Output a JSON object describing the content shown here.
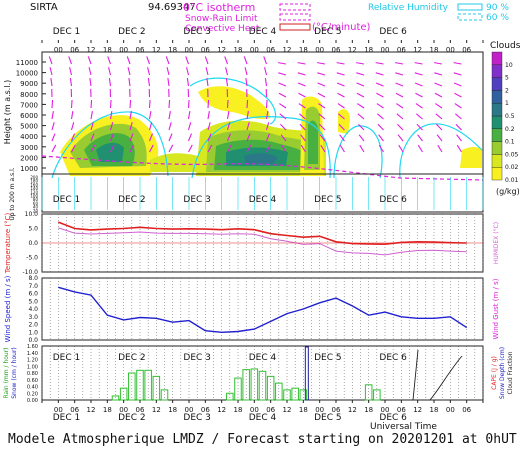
{
  "station": "SIRTA",
  "station_value": "94.69347",
  "header": {
    "isotherm_label": "0°C isotherm",
    "snow_rain_label": "Snow-Rain Limit",
    "convective_label": "Convective Heat.",
    "convective_unit": "(°C/minute)",
    "rh_label": "Relative Humidity",
    "rh_90": "90 %",
    "rh_60": "60 %"
  },
  "colors": {
    "magenta": "#e020e0",
    "cyan": "#20d8f0",
    "red": "#e02020",
    "violet": "#d060d0",
    "blue": "#2020d0",
    "green": "#30c030",
    "teal": "#20a0a0",
    "rain_label": "#20a020",
    "snow_label": "#2020c0",
    "cape_label": "#e02020",
    "cloud_frac_label": "#202020"
  },
  "days": [
    "DEC 1",
    "DEC 2",
    "DEC 3",
    "DEC 4",
    "DEC 5",
    "DEC 6"
  ],
  "hour_ticks": [
    "06",
    "12",
    "18",
    "00"
  ],
  "axes": {
    "height_label": "Height  (m a.s.l.)",
    "height_ticks": [
      "11000",
      "10000",
      "9000",
      "8000",
      "7000",
      "6000",
      "5000",
      "4000",
      "3000",
      "2000",
      "1000"
    ],
    "low_label": "Up to 200 m a.s.l.",
    "low_ticks": [
      "200",
      "180",
      "160",
      "140",
      "120",
      "100",
      "80",
      "60",
      "40",
      "20"
    ],
    "temp_label": "Temperature (°C)",
    "temp_ticks": [
      "10.0",
      "5.0",
      "0.0",
      "-5.0",
      "-10.0"
    ],
    "humidex_label": "HUMIDEX (°C)",
    "wind_label": "Wind Speed (m / s)",
    "wind_ticks": [
      "8.0",
      "7.0",
      "6.0",
      "5.0",
      "4.0",
      "3.0",
      "2.0",
      "1.0",
      "0.0"
    ],
    "gust_label": "Wind Gust (m / s)",
    "rain_label": "Rain (mm / hour)",
    "snow_label": "Snow (cm / hour)",
    "precip_ticks": [
      "1.60",
      "1.40",
      "1.20",
      "1.00",
      "0.80",
      "0.60",
      "0.40",
      "0.20",
      "0.00"
    ],
    "cape_label": "CAPE (J / g)",
    "snow_depth_label": "Snow Depth (cm)",
    "cloud_frac_label": "Cloud Fraction",
    "x_label": "Universal Time"
  },
  "clouds_legend": {
    "title": "Clouds",
    "unit": "(g/kg)",
    "levels": [
      "0.01",
      "0.02",
      "0.05",
      "0.1",
      "0.2",
      "0.5",
      "1",
      "2",
      "5",
      "10"
    ],
    "colors": [
      "#f8f020",
      "#d8e820",
      "#98cc30",
      "#48b040",
      "#209070",
      "#2a7888",
      "#3060a0",
      "#5040c0",
      "#8030c8",
      "#c020c8"
    ]
  },
  "chart_data": [
    {
      "type": "line",
      "panel": "temperature",
      "x": [
        0,
        6,
        12,
        18,
        24,
        30,
        36,
        42,
        48,
        54,
        60,
        66,
        72,
        78,
        84,
        90,
        96,
        102,
        108,
        114,
        120,
        126,
        132,
        138,
        144,
        150
      ],
      "series": [
        {
          "name": "Temperature",
          "values": [
            7.2,
            5.0,
            4.5,
            4.8,
            5.0,
            5.4,
            5.0,
            4.8,
            4.9,
            4.8,
            4.6,
            4.9,
            4.6,
            3.2,
            2.6,
            2.0,
            2.3,
            0.4,
            -0.2,
            -0.3,
            -0.4,
            0.2,
            0.4,
            0.3,
            0.1,
            0.0
          ]
        },
        {
          "name": "Humidex",
          "values": [
            5.2,
            3.4,
            3.1,
            3.3,
            3.5,
            3.8,
            3.4,
            3.3,
            3.3,
            3.2,
            3.0,
            3.2,
            3.0,
            1.5,
            0.6,
            -0.5,
            -0.2,
            -2.8,
            -3.4,
            -3.6,
            -4.1,
            -3.2,
            -2.6,
            -2.5,
            -2.8,
            -3.0
          ]
        }
      ],
      "ylim": [
        -10,
        10
      ]
    },
    {
      "type": "line",
      "panel": "wind",
      "x": [
        0,
        6,
        12,
        18,
        24,
        30,
        36,
        42,
        48,
        54,
        60,
        66,
        72,
        78,
        84,
        90,
        96,
        102,
        108,
        114,
        120,
        126,
        132,
        138,
        144,
        150
      ],
      "series": [
        {
          "name": "Wind Speed",
          "values": [
            6.8,
            6.2,
            5.8,
            3.2,
            2.6,
            2.9,
            2.8,
            2.3,
            2.5,
            1.2,
            1.0,
            1.1,
            1.4,
            2.4,
            3.4,
            4.0,
            4.8,
            5.4,
            4.4,
            3.2,
            3.6,
            3.0,
            2.8,
            2.8,
            3.0,
            1.6
          ]
        }
      ],
      "ylim": [
        0,
        8
      ]
    },
    {
      "type": "bar",
      "panel": "precipitation",
      "x": [
        21,
        24,
        27,
        30,
        33,
        36,
        39,
        63,
        66,
        69,
        72,
        75,
        78,
        81,
        84,
        87,
        90,
        114,
        117
      ],
      "series": [
        {
          "name": "Rain",
          "values": [
            0.12,
            0.35,
            0.8,
            0.88,
            0.88,
            0.7,
            0.3,
            0.2,
            0.65,
            0.9,
            0.92,
            0.85,
            0.7,
            0.5,
            0.3,
            0.35,
            0.3,
            0.45,
            0.3
          ]
        }
      ],
      "ylim": [
        0,
        1.6
      ]
    }
  ]
}
